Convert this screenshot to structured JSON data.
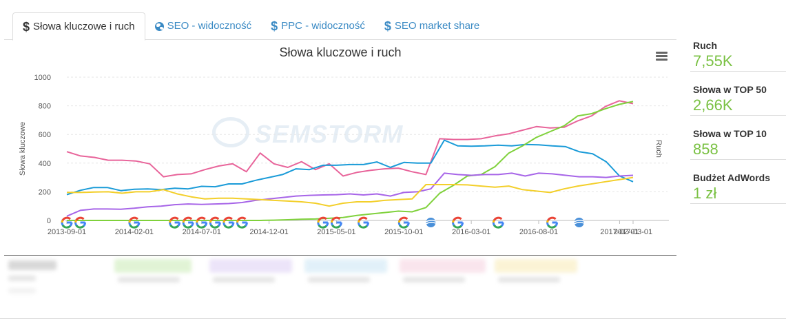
{
  "tabs": [
    {
      "label": "Słowa kluczowe i ruch",
      "icon": "dollar-icon",
      "active": true
    },
    {
      "label": "SEO - widoczność",
      "icon": "globe-icon",
      "active": false
    },
    {
      "label": "PPC - widoczność",
      "icon": "dollar-icon",
      "active": false
    },
    {
      "label": "SEO market share",
      "icon": "dollar-icon",
      "active": false
    }
  ],
  "watermark": "SEMSTORM",
  "stats": [
    {
      "label": "Ruch",
      "value": "7,55K"
    },
    {
      "label": "Słowa w TOP 50",
      "value": "2,66K"
    },
    {
      "label": "Słowa w TOP 10",
      "value": "858"
    },
    {
      "label": "Budżet AdWords",
      "value": "1 zł"
    }
  ],
  "colors": {
    "accent": "#7ac143",
    "link": "#3a8ac4",
    "pink": "#e8649a",
    "blue": "#1a9bd8",
    "green": "#7fd13b",
    "purple": "#a765e8",
    "yellow": "#f3cf2a"
  },
  "chart_data": {
    "type": "line",
    "title": "Słowa kluczowe i ruch",
    "ylabel": "Słowa kluczowe",
    "y2label": "Ruch",
    "ylim": [
      0,
      1000
    ],
    "yticks": [
      0,
      200,
      400,
      600,
      800,
      1000
    ],
    "x_start": "2013-09-01",
    "x_end": "2017-03-01",
    "xticks": [
      "2013-09-01",
      "2014-02-01",
      "2014-07-01",
      "2014-12-01",
      "2015-05-01",
      "2015-10-01",
      "2016-03-01",
      "2016-08-01",
      "2017-02-01",
      "2017-03-01"
    ],
    "grid": true,
    "legend": "none",
    "series": [
      {
        "color": "#e8649a",
        "values": [
          480,
          450,
          440,
          420,
          420,
          415,
          395,
          305,
          320,
          325,
          355,
          380,
          395,
          340,
          470,
          395,
          370,
          410,
          355,
          395,
          310,
          335,
          350,
          360,
          365,
          340,
          320,
          570,
          565,
          565,
          570,
          590,
          605,
          630,
          655,
          645,
          650,
          695,
          730,
          795,
          835,
          815
        ]
      },
      {
        "color": "#1a9bd8",
        "values": [
          180,
          210,
          230,
          230,
          208,
          218,
          220,
          215,
          225,
          220,
          238,
          235,
          255,
          255,
          280,
          300,
          320,
          360,
          355,
          385,
          385,
          390,
          390,
          408,
          370,
          405,
          400,
          400,
          560,
          520,
          518,
          520,
          525,
          520,
          530,
          528,
          520,
          515,
          480,
          465,
          410,
          310,
          270
        ]
      },
      {
        "color": "#7fd13b",
        "values": [
          0,
          0,
          0,
          0,
          0,
          0,
          0,
          0,
          0,
          0,
          0,
          0,
          0,
          0,
          0,
          2,
          5,
          8,
          10,
          15,
          20,
          35,
          45,
          55,
          65,
          60,
          90,
          190,
          245,
          310,
          320,
          375,
          470,
          520,
          580,
          620,
          660,
          730,
          745,
          780,
          810,
          830
        ]
      },
      {
        "color": "#a765e8",
        "values": [
          30,
          70,
          80,
          80,
          78,
          85,
          95,
          100,
          110,
          115,
          112,
          115,
          118,
          125,
          140,
          150,
          160,
          170,
          175,
          178,
          180,
          185,
          178,
          185,
          170,
          195,
          200,
          220,
          330,
          320,
          315,
          320,
          320,
          330,
          310,
          330,
          325,
          315,
          305,
          305,
          300,
          310,
          315
        ]
      },
      {
        "color": "#f3cf2a",
        "values": [
          195,
          195,
          198,
          200,
          190,
          200,
          200,
          215,
          185,
          165,
          150,
          155,
          155,
          150,
          145,
          140,
          135,
          130,
          120,
          100,
          120,
          130,
          130,
          140,
          145,
          150,
          250,
          250,
          250,
          248,
          240,
          232,
          240,
          215,
          205,
          195,
          220,
          240,
          255,
          270,
          285,
          300
        ]
      }
    ],
    "markers": [
      {
        "date": "2013-09-01",
        "icon": "google-icon"
      },
      {
        "date": "2013-10-01",
        "icon": "google-icon"
      },
      {
        "date": "2014-02-01",
        "icon": "google-icon"
      },
      {
        "date": "2014-05-01",
        "icon": "google-icon"
      },
      {
        "date": "2014-06-01",
        "icon": "google-icon"
      },
      {
        "date": "2014-07-01",
        "icon": "google-icon"
      },
      {
        "date": "2014-08-01",
        "icon": "google-icon"
      },
      {
        "date": "2014-09-01",
        "icon": "google-icon"
      },
      {
        "date": "2014-10-01",
        "icon": "google-icon"
      },
      {
        "date": "2015-04-01",
        "icon": "google-icon"
      },
      {
        "date": "2015-05-01",
        "icon": "google-icon"
      },
      {
        "date": "2015-07-01",
        "icon": "google-icon"
      },
      {
        "date": "2015-10-01",
        "icon": "google-icon"
      },
      {
        "date": "2015-12-01",
        "icon": "globe-icon"
      },
      {
        "date": "2016-02-01",
        "icon": "google-icon"
      },
      {
        "date": "2016-05-01",
        "icon": "google-icon"
      },
      {
        "date": "2016-09-01",
        "icon": "google-icon"
      },
      {
        "date": "2016-11-01",
        "icon": "globe-icon"
      }
    ]
  }
}
